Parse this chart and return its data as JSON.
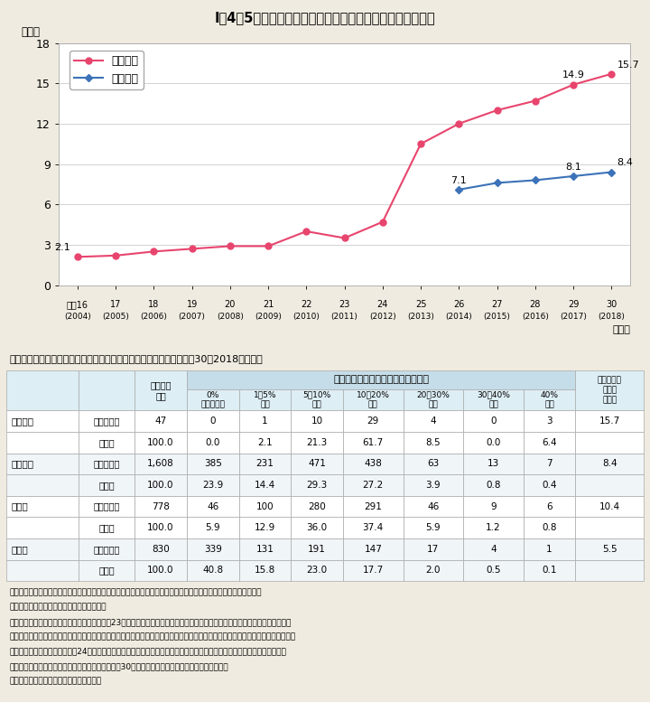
{
  "title": "I－4－5図　地方防災会議の委員に占める女性の割合の推移",
  "title_bg_color": "#5bc8cc",
  "outer_bg_color": "#f0ebe0",
  "plot_bg_color": "#ffffff",
  "ylabel": "（％）",
  "xlabel_year": "（年）",
  "years_label": [
    "平成16",
    "17",
    "18",
    "19",
    "20",
    "21",
    "22",
    "23",
    "24",
    "25",
    "26",
    "27",
    "28",
    "29",
    "30"
  ],
  "years_sublabel": [
    "(2004)",
    "(2005)",
    "(2006)",
    "(2007)",
    "(2008)",
    "(2009)",
    "(2010)",
    "(2011)",
    "(2012)",
    "(2013)",
    "(2014)",
    "(2015)",
    "(2016)",
    "(2017)",
    "(2018)"
  ],
  "x_positions": [
    0,
    1,
    2,
    3,
    4,
    5,
    6,
    7,
    8,
    9,
    10,
    11,
    12,
    13,
    14
  ],
  "pref_data": [
    2.1,
    2.2,
    2.5,
    2.7,
    2.9,
    2.9,
    4.0,
    3.5,
    4.7,
    10.5,
    12.0,
    13.0,
    13.7,
    14.9,
    15.7
  ],
  "muni_data": [
    null,
    null,
    null,
    null,
    null,
    null,
    null,
    null,
    null,
    null,
    7.1,
    7.6,
    7.8,
    8.1,
    8.4
  ],
  "pref_color": "#e8456e",
  "muni_color": "#3c72b8",
  "pref_label": "都道府県",
  "muni_label": "市区町村",
  "pref_ann_idx": [
    0,
    13,
    14
  ],
  "pref_ann_val": [
    "2.1",
    "14.9",
    "15.7"
  ],
  "muni_ann_idx": [
    10,
    13,
    14
  ],
  "muni_ann_val": [
    "7.1",
    "8.1",
    "8.4"
  ],
  "ylim": [
    0,
    18
  ],
  "yticks": [
    0,
    3,
    6,
    9,
    12,
    15,
    18
  ],
  "ref_title": "＜参考：委員に占める女性の割合階級別防災会議の数及び割合（平成30（2018）年）＞",
  "table_header2_main": "防災会議の委員に占める女性の割合",
  "table_col3_header": "防災会議\n合計",
  "table_cols": [
    "0%\n（いない）",
    "1～5%\n未満",
    "5～10%\n未満",
    "10～20%\n未満",
    "20～30%\n未満",
    "30～40%\n未満",
    "40%\n以上"
  ],
  "table_last_col": "女性の割合\nの平均\n（％）",
  "table_rows": [
    {
      "label1": "都道府県",
      "label2": "（会議数）",
      "total": "47",
      "vals": [
        "0",
        "1",
        "10",
        "29",
        "4",
        "0",
        "3"
      ],
      "avg": "15.7"
    },
    {
      "label1": "",
      "label2": "（％）",
      "total": "100.0",
      "vals": [
        "0.0",
        "2.1",
        "21.3",
        "61.7",
        "8.5",
        "0.0",
        "6.4"
      ],
      "avg": ""
    },
    {
      "label1": "市区町村",
      "label2": "（会議数）",
      "total": "1,608",
      "vals": [
        "385",
        "231",
        "471",
        "438",
        "63",
        "13",
        "7"
      ],
      "avg": "8.4"
    },
    {
      "label1": "",
      "label2": "（％）",
      "total": "100.0",
      "vals": [
        "23.9",
        "14.4",
        "29.3",
        "27.2",
        "3.9",
        "0.8",
        "0.4"
      ],
      "avg": ""
    },
    {
      "label1": "市　区",
      "label2": "（会議数）",
      "total": "778",
      "vals": [
        "46",
        "100",
        "280",
        "291",
        "46",
        "9",
        "6"
      ],
      "avg": "10.4"
    },
    {
      "label1": "",
      "label2": "（％）",
      "total": "100.0",
      "vals": [
        "5.9",
        "12.9",
        "36.0",
        "37.4",
        "5.9",
        "1.2",
        "0.8"
      ],
      "avg": ""
    },
    {
      "label1": "町　村",
      "label2": "（会議数）",
      "total": "830",
      "vals": [
        "339",
        "131",
        "191",
        "147",
        "17",
        "4",
        "1"
      ],
      "avg": "5.5"
    },
    {
      "label1": "",
      "label2": "（％）",
      "total": "100.0",
      "vals": [
        "40.8",
        "15.8",
        "23.0",
        "17.7",
        "2.0",
        "0.5",
        "0.1"
      ],
      "avg": ""
    }
  ],
  "notes": [
    "（備考）１．内閣府「地方公共団体における男女共同参画社会の形成叆は女性に関する施策の進捗状況」より作成。",
    "　　　　２．原則として各年４月１日現在。",
    "　　　　３．東日本大震災の影響により，平成23年値には，岩手県の一部（花巻市，陸前高田市，釜石市，大槻町），宮城県の",
    "　　　　　　一部（女川町，南三陸町），福島県の一部（南相馬市，下郷町，広野町，楷葉町，富岡町，大熊町，双葉町，浪江町，",
    "　　　　　　飯館村）が，平成24年値には，福島県の一部（川内村，葛尾村，飯館村）がそれぞれ含まれていない。また，北",
    "　　　　　　海道胆振東部地震の影響により，平成30年の値には北海道厚真町が含まれていない。",
    "　　　　４．「市区」には特別区を含む。"
  ]
}
